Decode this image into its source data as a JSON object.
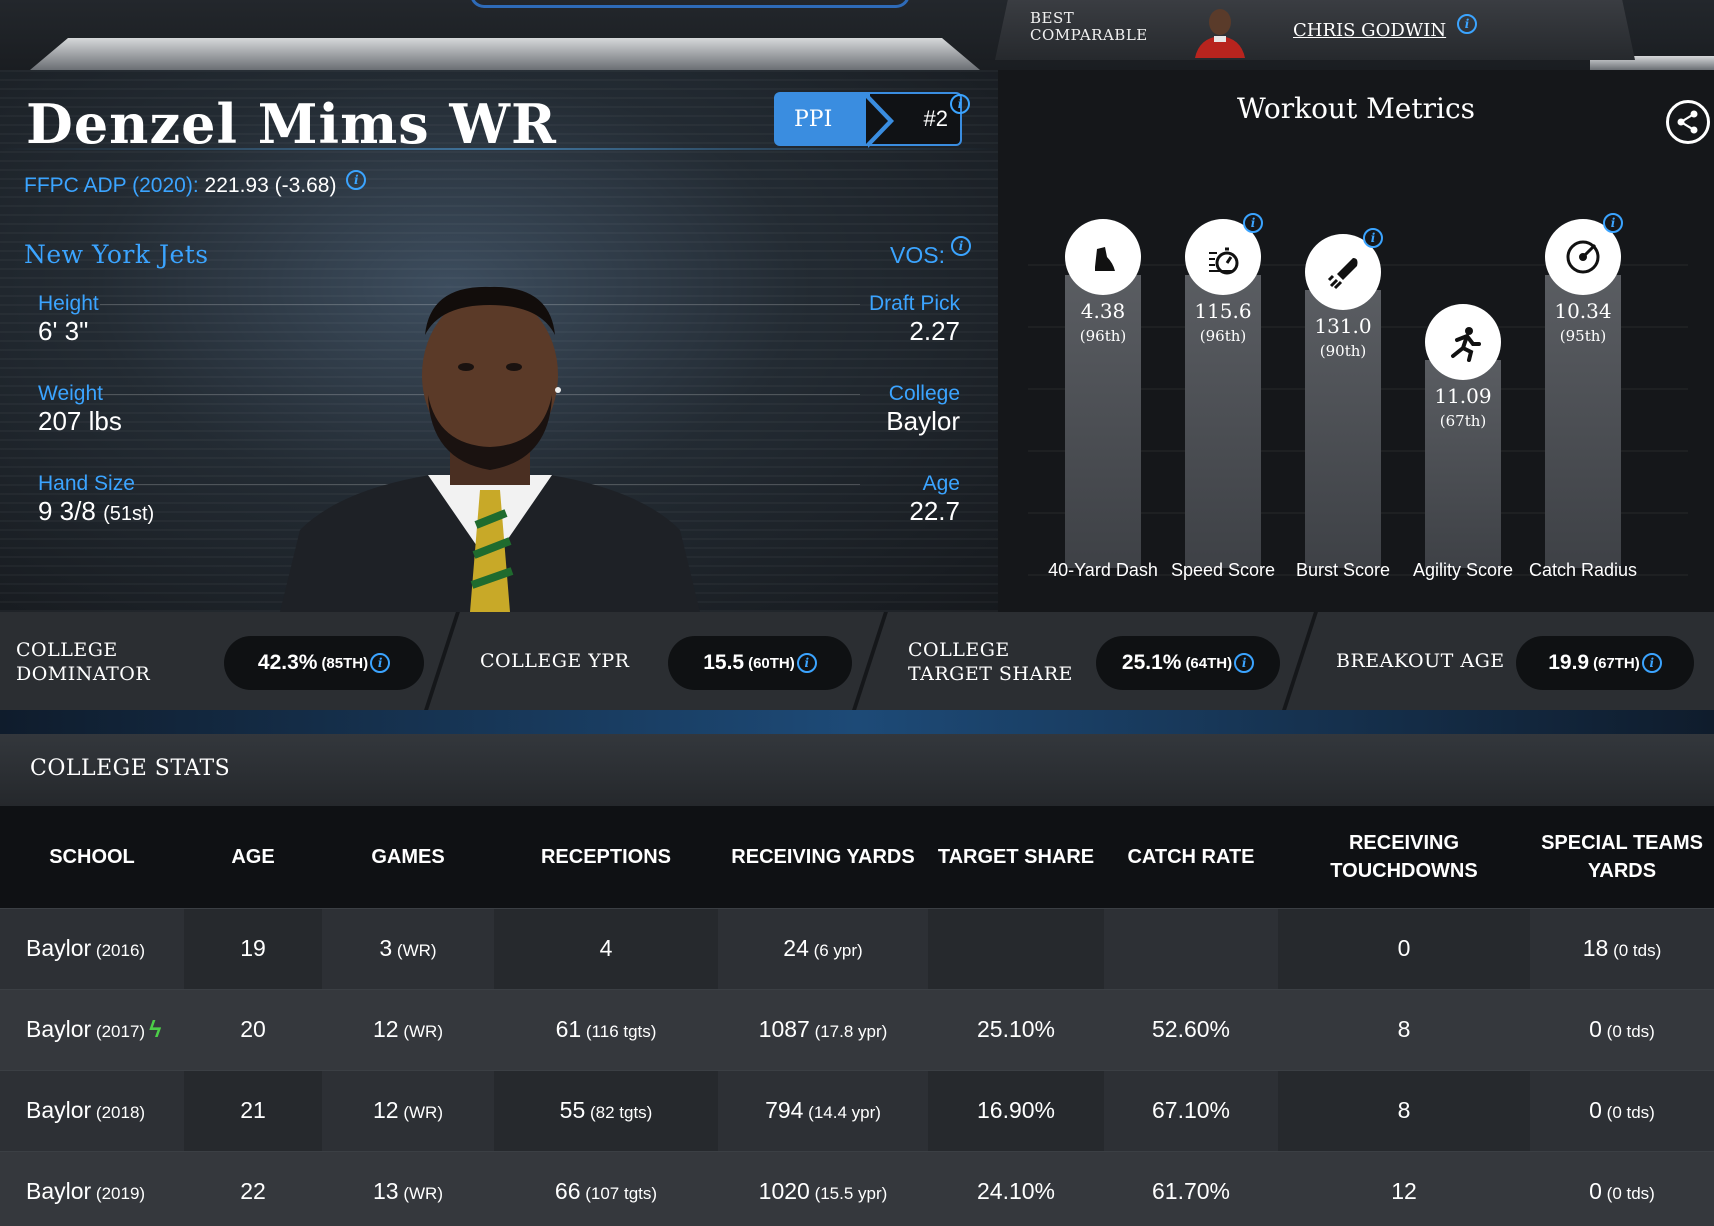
{
  "best_comparable": {
    "label_line1": "BEST",
    "label_line2": "COMPARABLE",
    "name": "CHRIS GODWIN"
  },
  "player": {
    "name": "Denzel Mims WR",
    "adp_label": "FFPC ADP (2020):",
    "adp_value": "221.93 (-3.68)",
    "ppi_label": "PPI",
    "ppi_rank": "#2",
    "team": "New York Jets",
    "vos_label": "VOS:",
    "attributes_left": [
      {
        "key": "Height",
        "value": "6' 3\"",
        "extra": ""
      },
      {
        "key": "Weight",
        "value": "207 lbs",
        "extra": ""
      },
      {
        "key": "Hand Size",
        "value": "9 3/8",
        "extra": "(51st)"
      }
    ],
    "attributes_right": [
      {
        "key": "Draft Pick",
        "value": "2.27"
      },
      {
        "key": "College",
        "value": "Baylor"
      },
      {
        "key": "Age",
        "value": "22.7"
      }
    ]
  },
  "workout": {
    "title": "Workout Metrics",
    "metrics": [
      {
        "label": "40-Yard Dash",
        "value": "4.38",
        "rank": "(96th)",
        "percentile": 96,
        "icon": "shoe-icon",
        "info": false
      },
      {
        "label": "Speed Score",
        "value": "115.6",
        "rank": "(96th)",
        "percentile": 96,
        "icon": "stopwatch-icon",
        "info": true
      },
      {
        "label": "Burst Score",
        "value": "131.0",
        "rank": "(90th)",
        "percentile": 90,
        "icon": "rocket-icon",
        "info": true
      },
      {
        "label": "Agility Score",
        "value": "11.09",
        "rank": "(67th)",
        "percentile": 67,
        "icon": "runner-icon",
        "info": false
      },
      {
        "label": "Catch Radius",
        "value": "10.34",
        "rank": "(95th)",
        "percentile": 95,
        "icon": "target-icon",
        "info": true
      }
    ]
  },
  "metric_bar": [
    {
      "label_line1": "COLLEGE",
      "label_line2": "DOMINATOR",
      "value": "42.3%",
      "rank": "(85TH)"
    },
    {
      "label_line1": "COLLEGE YPR",
      "label_line2": "",
      "value": "15.5",
      "rank": "(60TH)"
    },
    {
      "label_line1": "COLLEGE",
      "label_line2": "TARGET SHARE",
      "value": "25.1%",
      "rank": "(64TH)"
    },
    {
      "label_line1": "BREAKOUT AGE",
      "label_line2": "",
      "value": "19.9",
      "rank": "(67TH)"
    }
  ],
  "college_stats": {
    "title": "COLLEGE STATS",
    "headers": [
      "SCHOOL",
      "AGE",
      "GAMES",
      "RECEPTIONS",
      "RECEIVING YARDS",
      "TARGET SHARE",
      "CATCH RATE",
      "RECEIVING TOUCHDOWNS",
      "SPECIAL TEAMS YARDS"
    ],
    "rows": [
      {
        "school": "Baylor",
        "year": "(2016)",
        "breakout": false,
        "age": "19",
        "games": "3",
        "games_pos": "(WR)",
        "rec": "4",
        "rec_extra": "",
        "yds": "24",
        "yds_extra": "(6 ypr)",
        "ts": "",
        "cr": "",
        "td": "0",
        "st": "18",
        "st_extra": "(0 tds)"
      },
      {
        "school": "Baylor",
        "year": "(2017)",
        "breakout": true,
        "age": "20",
        "games": "12",
        "games_pos": "(WR)",
        "rec": "61",
        "rec_extra": "(116 tgts)",
        "yds": "1087",
        "yds_extra": "(17.8 ypr)",
        "ts": "25.10%",
        "cr": "52.60%",
        "td": "8",
        "st": "0",
        "st_extra": "(0 tds)"
      },
      {
        "school": "Baylor",
        "year": "(2018)",
        "breakout": false,
        "age": "21",
        "games": "12",
        "games_pos": "(WR)",
        "rec": "55",
        "rec_extra": "(82 tgts)",
        "yds": "794",
        "yds_extra": "(14.4 ypr)",
        "ts": "16.90%",
        "cr": "67.10%",
        "td": "8",
        "st": "0",
        "st_extra": "(0 tds)"
      },
      {
        "school": "Baylor",
        "year": "(2019)",
        "breakout": false,
        "age": "22",
        "games": "13",
        "games_pos": "(WR)",
        "rec": "66",
        "rec_extra": "(107 tgts)",
        "yds": "1020",
        "yds_extra": "(15.5 ypr)",
        "ts": "24.10%",
        "cr": "61.70%",
        "td": "12",
        "st": "0",
        "st_extra": "(0 tds)"
      }
    ]
  },
  "colors": {
    "accent": "#3ba4ff",
    "ppi_blue": "#3a8de0",
    "breakout_green": "#4ccf48"
  }
}
